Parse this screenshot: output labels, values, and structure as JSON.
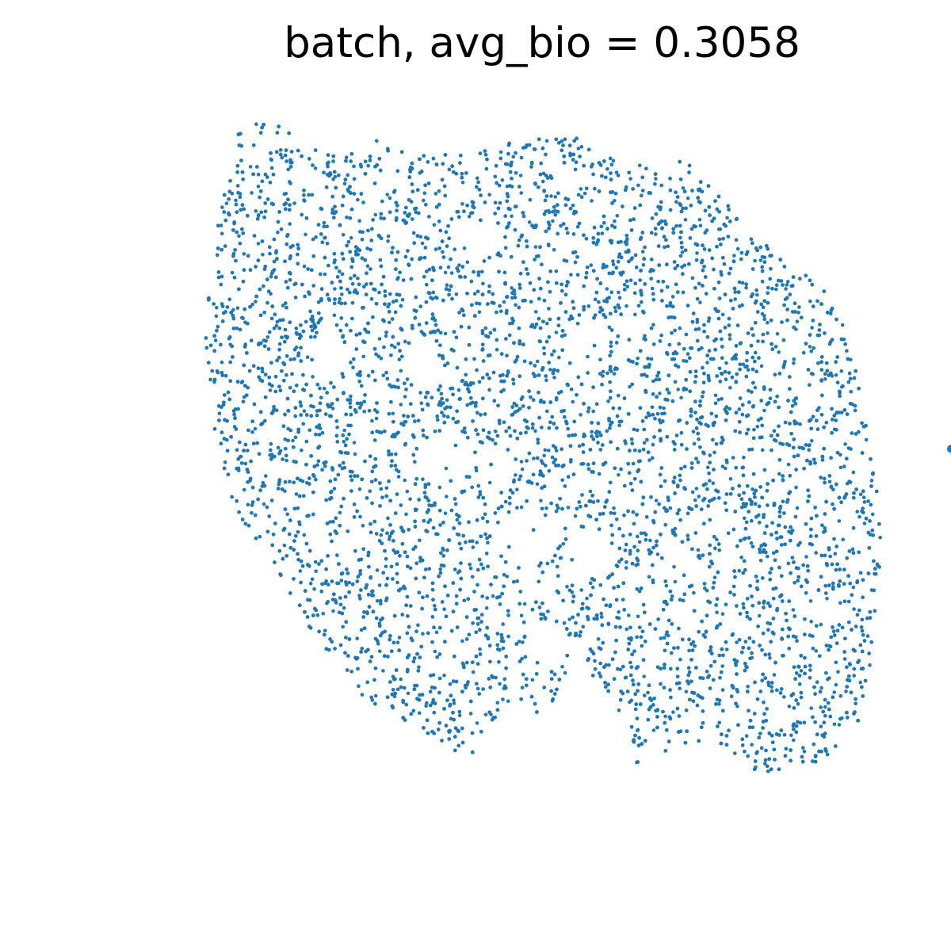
{
  "chart_data": {
    "type": "scatter",
    "title": "batch, avg_bio = 0.3058",
    "xlabel": "",
    "ylabel": "",
    "axes_visible": false,
    "grid": false,
    "legend": "none visible",
    "series": [
      {
        "color": "#1f77b4",
        "point_count_approx": 9000,
        "description_regions": [
          {
            "x_range": [
              0.22,
              0.93
            ],
            "y_range": [
              0.19,
              0.88
            ],
            "density": "dense"
          }
        ]
      }
    ],
    "cropped_marker": {
      "x": 1.0,
      "y": 0.472,
      "color": "#1f77b4"
    }
  },
  "colors": {
    "point": "#1f77b4",
    "background": "#ffffff"
  }
}
